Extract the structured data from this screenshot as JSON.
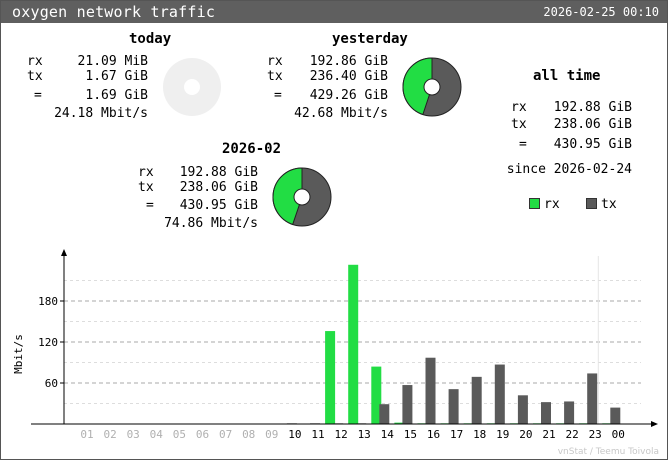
{
  "header": {
    "title": "oxygen network traffic",
    "timestamp": "2026-02-25 00:10"
  },
  "summaries": {
    "today": {
      "heading": "today",
      "rx_label": "rx",
      "rx": "21.09 MiB",
      "tx_label": "tx",
      "tx": "1.67 GiB",
      "total_label": "=",
      "total": "1.69 GiB",
      "rate": "24.18 Mbit/s",
      "rx_share": 0.0
    },
    "yesterday": {
      "heading": "yesterday",
      "rx_label": "rx",
      "rx": "192.86 GiB",
      "tx_label": "tx",
      "tx": "236.40 GiB",
      "total_label": "=",
      "total": "429.26 GiB",
      "rate": "42.68 Mbit/s",
      "rx_share": 0.449
    },
    "month": {
      "heading": "2026-02",
      "rx_label": "rx",
      "rx": "192.88 GiB",
      "tx_label": "tx",
      "tx": "238.06 GiB",
      "total_label": "=",
      "total": "430.95 GiB",
      "rate": "74.86 Mbit/s",
      "rx_share": 0.448
    },
    "alltime": {
      "heading": "all time",
      "rx_label": "rx",
      "rx": "192.88 GiB",
      "tx_label": "tx",
      "tx": "238.06 GiB",
      "total_label": "=",
      "total": "430.95 GiB",
      "since": "since 2026-02-24"
    }
  },
  "legend": {
    "rx": "rx",
    "tx": "tx"
  },
  "colors": {
    "rx": "#22dd44",
    "tx": "#5a5a5a",
    "empty_pie": "#efefef"
  },
  "footer": "vnStat / Teemu Toivola",
  "chart_data": {
    "type": "bar",
    "ylabel": "Mbit/s",
    "ylim": [
      0,
      240
    ],
    "yticks": [
      60,
      120,
      180
    ],
    "categories": [
      "01",
      "02",
      "03",
      "04",
      "05",
      "06",
      "07",
      "08",
      "09",
      "10",
      "11",
      "12",
      "13",
      "14",
      "15",
      "16",
      "17",
      "18",
      "19",
      "20",
      "21",
      "22",
      "23",
      "00"
    ],
    "series": [
      {
        "name": "rx",
        "values": [
          0,
          0,
          0,
          0,
          0,
          0,
          0,
          0,
          0,
          0,
          0,
          136,
          233,
          84,
          2,
          1,
          1,
          1,
          1,
          1,
          1,
          1,
          1,
          1
        ]
      },
      {
        "name": "tx",
        "values": [
          0,
          0,
          0,
          0,
          0,
          0,
          0,
          0,
          0,
          1,
          1,
          1,
          1,
          29,
          57,
          97,
          51,
          69,
          87,
          42,
          32,
          33,
          74,
          24
        ]
      }
    ]
  }
}
